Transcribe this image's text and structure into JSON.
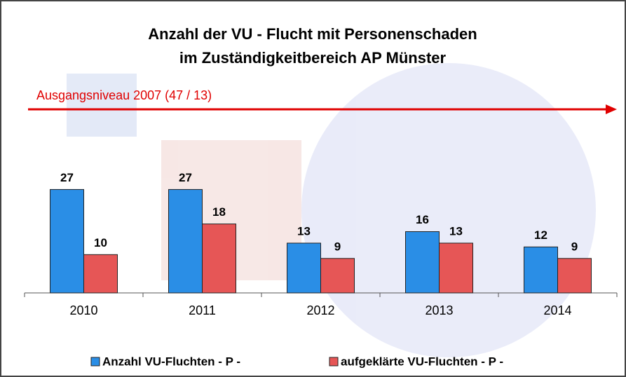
{
  "chart_data": {
    "type": "bar",
    "title": [
      "Anzahl der VU - Flucht mit Personenschaden",
      "im Zuständigkeitbereich AP Münster"
    ],
    "annotation": "Ausgangsniveau  2007 (47 / 13)",
    "categories": [
      "2010",
      "2011",
      "2012",
      "2013",
      "2014"
    ],
    "series": [
      {
        "name": "Anzahl VU-Fluchten - P -",
        "color": "#2a8ee6",
        "values": [
          27,
          27,
          13,
          16,
          12
        ]
      },
      {
        "name": "aufgeklärte VU-Fluchten - P -",
        "color": "#e65656",
        "values": [
          10,
          18,
          9,
          13,
          9
        ]
      }
    ],
    "ylim": [
      0,
      30
    ]
  }
}
